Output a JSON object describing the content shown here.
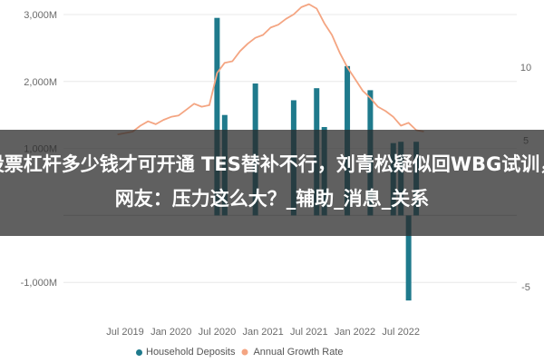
{
  "banner": {
    "text": "股票杠杆多少钱才可开通 TES替补不行，刘青松疑似回WBG试训，网友：压力这么大？_辅助_消息_关系"
  },
  "chart_data": {
    "type": "bar",
    "title": "",
    "y_left": {
      "ticks": [
        3000,
        2000,
        1000,
        -1000
      ],
      "tick_labels": [
        "3,000M",
        "2,000M",
        "1,000M",
        "-1,000M"
      ],
      "range": [
        -1300,
        3100
      ]
    },
    "y_right": {
      "ticks": [
        10,
        5,
        -5
      ],
      "tick_labels": [
        "10",
        "5",
        "-5"
      ],
      "range": [
        -6.5,
        14.5
      ]
    },
    "x_axis": {
      "tick_labels": [
        "Jul 2019",
        "Jan 2020",
        "Jul 2020",
        "Jan 2021",
        "Jul 2021",
        "Jan 2022",
        "Jul 2022"
      ]
    },
    "series": [
      {
        "name": "Household Deposits",
        "type": "bar",
        "axis": "left",
        "color": "#1f7a8c",
        "x": [
          "Jan 2020",
          "Feb 2020",
          "Mar 2020",
          "Apr 2020",
          "May 2020",
          "Jun 2020",
          "Jul 2020",
          "Aug 2020",
          "Sep 2020",
          "Oct 2020",
          "Nov 2020",
          "Dec 2020",
          "Jan 2021",
          "Feb 2021",
          "Mar 2021",
          "Apr 2021",
          "May 2021",
          "Jun 2021",
          "Jul 2021",
          "Aug 2021",
          "Sep 2021",
          "Oct 2021",
          "Nov 2021",
          "Dec 2021",
          "Jan 2022",
          "Feb 2022",
          "Mar 2022",
          "Apr 2022",
          "May 2022",
          "Jun 2022",
          "Jul 2022",
          "Aug 2022",
          "Sep 2022",
          "Oct 2022"
        ],
        "values": [
          0,
          0,
          0,
          0,
          0,
          0,
          2950,
          1500,
          0,
          0,
          0,
          1970,
          0,
          0,
          0,
          0,
          1720,
          0,
          0,
          1900,
          1320,
          0,
          0,
          2230,
          0,
          0,
          1870,
          0,
          0,
          1080,
          1100,
          -1270,
          1100,
          0
        ]
      },
      {
        "name": "Annual Growth Rate",
        "type": "line",
        "axis": "right",
        "color": "#f4a582",
        "x": [
          "Jun 2019",
          "Jul 2019",
          "Aug 2019",
          "Sep 2019",
          "Oct 2019",
          "Nov 2019",
          "Dec 2019",
          "Jan 2020",
          "Feb 2020",
          "Mar 2020",
          "Apr 2020",
          "May 2020",
          "Jun 2020",
          "Jul 2020",
          "Aug 2020",
          "Sep 2020",
          "Oct 2020",
          "Nov 2020",
          "Dec 2020",
          "Jan 2021",
          "Feb 2021",
          "Mar 2021",
          "Apr 2021",
          "May 2021",
          "Jun 2021",
          "Jul 2021",
          "Aug 2021",
          "Sep 2021",
          "Oct 2021",
          "Nov 2021",
          "Dec 2021",
          "Jan 2022",
          "Feb 2022",
          "Mar 2022",
          "Apr 2022",
          "May 2022",
          "Jun 2022",
          "Jul 2022",
          "Aug 2022",
          "Sep 2022",
          "Oct 2022"
        ],
        "values": [
          5.4,
          5.5,
          5.6,
          6.0,
          6.3,
          6.1,
          6.4,
          6.6,
          6.7,
          7.1,
          7.5,
          7.3,
          7.4,
          9.6,
          10.3,
          10.4,
          11.1,
          11.6,
          12.0,
          12.2,
          12.7,
          12.9,
          13.3,
          13.6,
          14.1,
          14.3,
          14.0,
          13.0,
          12.2,
          11.0,
          10.0,
          9.2,
          8.4,
          7.9,
          7.3,
          7.0,
          6.6,
          6.0,
          6.2,
          5.7,
          5.6
        ]
      }
    ],
    "legend": {
      "placement": "bottom"
    }
  }
}
